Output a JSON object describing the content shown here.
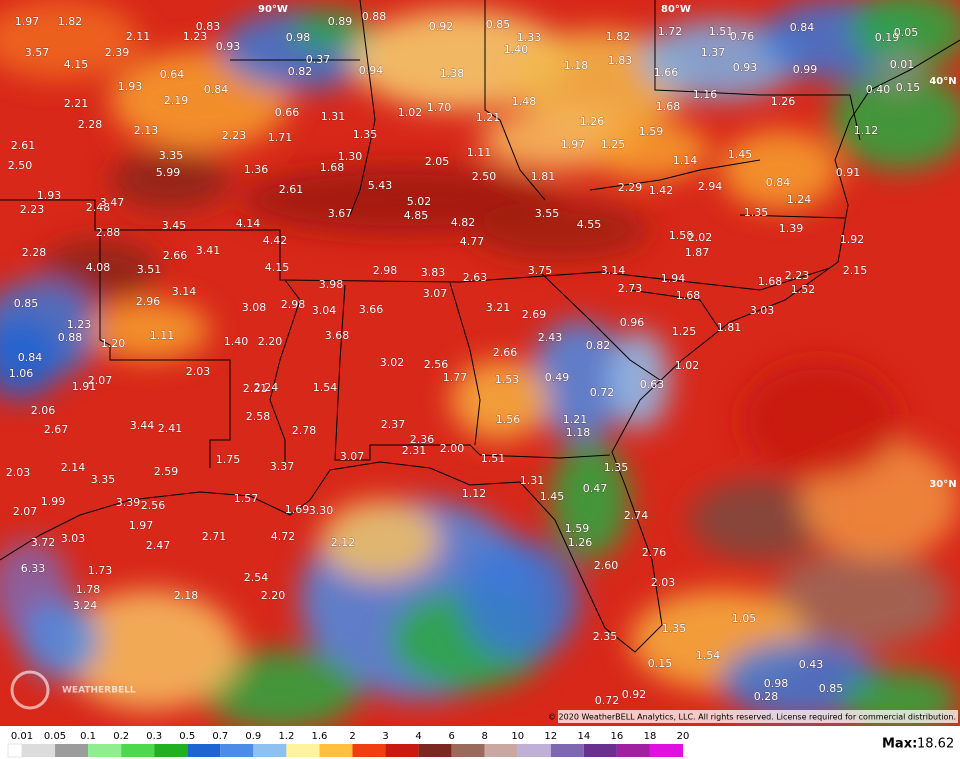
{
  "map": {
    "longitude_labels": [
      "90°W",
      "80°W"
    ],
    "latitude_labels": [
      "40°N",
      "30°N"
    ],
    "values": [
      "1.97",
      "1.82",
      "0.83",
      "0.89",
      "0.88",
      "0.92",
      "0.85",
      "1.72",
      "1.51",
      "0.76",
      "0.84",
      "0.19",
      "0.05",
      "2.11",
      "1.23",
      "0.98",
      "1.33",
      "1.82",
      "3.57",
      "2.39",
      "0.93",
      "0.37",
      "1.40",
      "1.37",
      "4.15",
      "0.64",
      "0.82",
      "0.94",
      "1.38",
      "1.18",
      "1.83",
      "1.66",
      "0.93",
      "0.99",
      "0.01",
      "0.40",
      "0.15",
      "1.93",
      "0.84",
      "1.48",
      "1.68",
      "1.16",
      "1.26",
      "2.21",
      "2.19",
      "0.66",
      "1.31",
      "1.02",
      "1.70",
      "1.21",
      "1.26",
      "2.28",
      "2.13",
      "2.23",
      "1.71",
      "1.35",
      "1.59",
      "1.12",
      "2.61",
      "3.35",
      "1.30",
      "2.05",
      "1.11",
      "1.97",
      "1.25",
      "1.45",
      "2.50",
      "5.99",
      "1.36",
      "1.68",
      "1.14",
      "0.91",
      "1.93",
      "5.43",
      "2.50",
      "1.81",
      "2.29",
      "1.42",
      "2.94",
      "0.84",
      "2.23",
      "2.48",
      "3.47",
      "2.61",
      "5.02",
      "1.24",
      "3.67",
      "4.85",
      "4.82",
      "3.55",
      "1.35",
      "3.45",
      "4.14",
      "4.55",
      "1.39",
      "2.88",
      "4.42",
      "4.77",
      "1.58",
      "2.02",
      "1.92",
      "2.28",
      "2.66",
      "3.41",
      "1.87",
      "4.08",
      "3.51",
      "4.15",
      "2.98",
      "3.83",
      "2.63",
      "3.75",
      "3.14",
      "2.15",
      "3.98",
      "1.94",
      "1.68",
      "2.23",
      "2.73",
      "3.14",
      "3.07",
      "1.68",
      "1.52",
      "0.85",
      "2.96",
      "3.08",
      "2.98",
      "3.04",
      "3.66",
      "3.21",
      "2.69",
      "3.03",
      "1.23",
      "0.96",
      "1.25",
      "1.81",
      "0.88",
      "1.11",
      "3.68",
      "2.43",
      "1.20",
      "1.40",
      "2.20",
      "0.82",
      "0.84",
      "2.66",
      "1.06",
      "2.03",
      "3.02",
      "2.56",
      "1.02",
      "2.07",
      "1.91",
      "2.21",
      "2.24",
      "1.54",
      "1.77",
      "1.53",
      "0.49",
      "0.63",
      "0.72",
      "2.06",
      "2.58",
      "1.56",
      "1.21",
      "2.67",
      "3.44",
      "2.41",
      "2.37",
      "2.78",
      "1.18",
      "2.36",
      "2.31",
      "2.00",
      "3.07",
      "1.75",
      "1.51",
      "2.03",
      "2.14",
      "3.37",
      "2.59",
      "1.35",
      "3.35",
      "1.31",
      "1.99",
      "3.39",
      "2.56",
      "1.57",
      "1.12",
      "1.45",
      "0.47",
      "2.07",
      "1.69",
      "3.30",
      "2.74",
      "1.97",
      "1.59",
      "3.72",
      "3.03",
      "2.47",
      "2.71",
      "4.72",
      "2.12",
      "1.26",
      "2.76",
      "6.33",
      "1.73",
      "2.60",
      "2.54",
      "1.78",
      "2.18",
      "2.20",
      "2.03",
      "3.24",
      "1.05",
      "1.35",
      "2.35",
      "0.15",
      "1.54",
      "0.43",
      "0.98",
      "0.85",
      "0.28",
      "0.72",
      "0.92"
    ],
    "copyright": "© 2020 WeatherBELL Analytics, LLC. All rights reserved. License required for commercial distribution.",
    "logo": "WEATHERBELL"
  },
  "legend": {
    "ticks": [
      0.01,
      0.05,
      0.1,
      0.2,
      0.3,
      0.5,
      0.7,
      0.9,
      1.2,
      1.6,
      2,
      3,
      4,
      6,
      8,
      10,
      12,
      14,
      16,
      18,
      20
    ],
    "colors": [
      "#dcdcdc",
      "#9c9c9c",
      "#90ee90",
      "#4ed84e",
      "#20b020",
      "#1e64d2",
      "#4a8ce8",
      "#8ec0f0",
      "#fff3a0",
      "#ffc040",
      "#f04010",
      "#c81a10",
      "#7a2820",
      "#9a6a5a",
      "#c8a8a0",
      "#c0b0d8",
      "#8068b0",
      "#6a3090",
      "#a020a0",
      "#e010e0"
    ]
  },
  "max": {
    "label": "Max:",
    "value": "18.62"
  }
}
